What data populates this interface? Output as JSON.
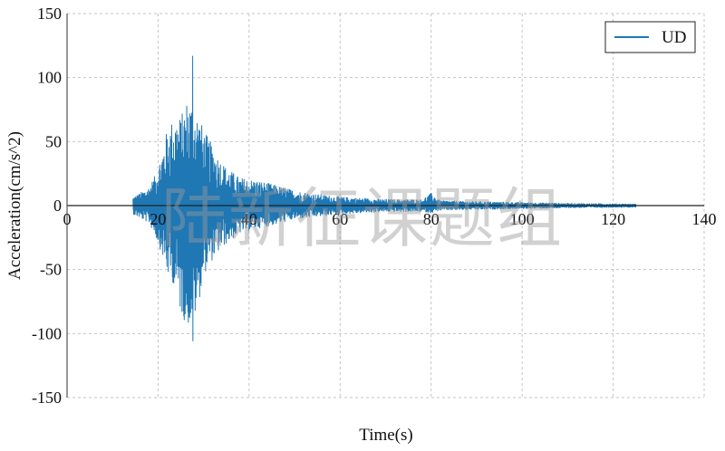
{
  "chart_data": {
    "type": "line",
    "xlabel": "Time(s)",
    "ylabel": "Acceleration(cm/s^2)",
    "xlim": [
      0,
      140
    ],
    "ylim": [
      -150,
      150
    ],
    "xticks": [
      "0",
      "20",
      "40",
      "60",
      "80",
      "100",
      "120",
      "140"
    ],
    "yticks": [
      "150",
      "100",
      "50",
      "0",
      "-50",
      "-100",
      "-150"
    ],
    "grid": true,
    "legend_position": "top-right",
    "series": [
      {
        "name": "UD",
        "color": "#1f77b4",
        "start_time": 14.5,
        "end_time": 125,
        "peak_max": {
          "t": 27.6,
          "value": 117
        },
        "peak_min": {
          "t": 27.6,
          "value": -106
        },
        "envelope": [
          [
            14.5,
            7,
            -7
          ],
          [
            16,
            10,
            -10
          ],
          [
            18,
            15,
            -14
          ],
          [
            19.5,
            25,
            -25
          ],
          [
            21,
            45,
            -40
          ],
          [
            22,
            60,
            -55
          ],
          [
            23.5,
            70,
            -62
          ],
          [
            25,
            70,
            -85
          ],
          [
            26.5,
            85,
            -95
          ],
          [
            28,
            80,
            -90
          ],
          [
            29,
            70,
            -75
          ],
          [
            30,
            60,
            -55
          ],
          [
            31.5,
            50,
            -45
          ],
          [
            33,
            40,
            -38
          ],
          [
            35,
            30,
            -30
          ],
          [
            38,
            22,
            -22
          ],
          [
            42,
            20,
            -18
          ],
          [
            46,
            16,
            -15
          ],
          [
            50,
            12,
            -11
          ],
          [
            55,
            9,
            -9
          ],
          [
            60,
            7,
            -7
          ],
          [
            70,
            5,
            -5
          ],
          [
            78,
            5,
            -5
          ],
          [
            80,
            10,
            -6
          ],
          [
            82,
            4,
            -4
          ],
          [
            95,
            3,
            -3
          ],
          [
            110,
            2,
            -2
          ],
          [
            125,
            1.5,
            -1.5
          ]
        ]
      }
    ],
    "watermark": "陆新征课题组"
  }
}
